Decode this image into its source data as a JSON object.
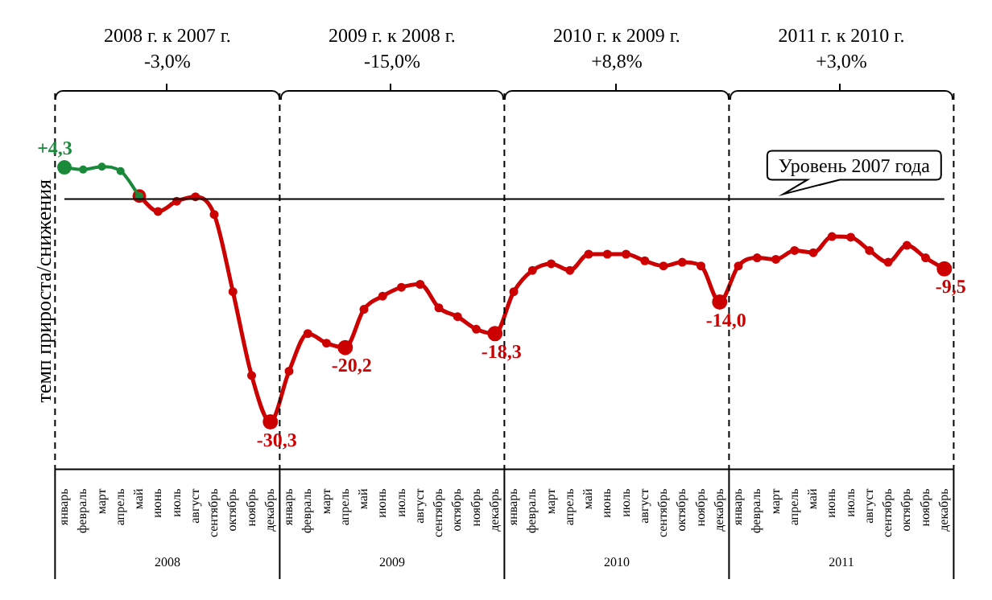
{
  "chart_data": {
    "type": "line",
    "ylabel": "темп прироста/снижения",
    "categories": [
      "январь",
      "февраль",
      "март",
      "апрель",
      "май",
      "июнь",
      "июль",
      "август",
      "сентябрь",
      "октябрь",
      "ноябрь",
      "декабрь",
      "январь",
      "февраль",
      "март",
      "апрель",
      "май",
      "июнь",
      "июль",
      "август",
      "сентябрь",
      "октябрь",
      "ноябрь",
      "декабрь",
      "январь",
      "февраль",
      "март",
      "апрель",
      "май",
      "июнь",
      "июль",
      "август",
      "сентябрь",
      "октябрь",
      "ноябрь",
      "декабрь",
      "январь",
      "февраль",
      "март",
      "апрель",
      "май",
      "июнь",
      "июль",
      "август",
      "сентябрь",
      "октябрь",
      "ноябрь",
      "декабрь"
    ],
    "series": [
      {
        "color": "#1a8a3a",
        "values": [
          4.3,
          4.0,
          4.4,
          3.8,
          0.4,
          null,
          null,
          null,
          null,
          null,
          null,
          null,
          null,
          null,
          null,
          null,
          null,
          null,
          null,
          null,
          null,
          null,
          null,
          null,
          null,
          null,
          null,
          null,
          null,
          null,
          null,
          null,
          null,
          null,
          null,
          null,
          null,
          null,
          null,
          null,
          null,
          null,
          null,
          null,
          null,
          null,
          null,
          null
        ],
        "value_labels": [
          "+4,3",
          null,
          null,
          null,
          null,
          null,
          null,
          null,
          null,
          null,
          null,
          null,
          null,
          null,
          null,
          null,
          null,
          null,
          null,
          null,
          null,
          null,
          null,
          null,
          null,
          null,
          null,
          null,
          null,
          null,
          null,
          null,
          null,
          null,
          null,
          null,
          null,
          null,
          null,
          null,
          null,
          null,
          null,
          null,
          null,
          null,
          null,
          null
        ]
      },
      {
        "color": "#cc0000",
        "values": [
          null,
          null,
          null,
          null,
          0.4,
          -1.7,
          -0.3,
          0.3,
          -2.1,
          -12.6,
          -24.0,
          -30.3,
          -23.4,
          -18.3,
          -19.6,
          -20.2,
          -15.0,
          -13.2,
          -12.0,
          -11.6,
          -14.8,
          -16.0,
          -17.7,
          -18.3,
          -12.6,
          -9.7,
          -8.8,
          -9.7,
          -7.5,
          -7.5,
          -7.5,
          -8.4,
          -9.1,
          -8.6,
          -9.1,
          -14.0,
          -9.1,
          -8.0,
          -8.2,
          -7.0,
          -7.3,
          -5.1,
          -5.2,
          -7.0,
          -8.6,
          -6.3,
          -8.0,
          -9.5
        ],
        "value_labels": [
          null,
          null,
          null,
          null,
          null,
          null,
          null,
          null,
          null,
          null,
          null,
          "-30,3",
          null,
          null,
          null,
          "-20,2",
          null,
          null,
          null,
          null,
          null,
          null,
          null,
          "-18,3",
          null,
          null,
          null,
          null,
          null,
          null,
          null,
          null,
          null,
          null,
          null,
          "-14,0",
          null,
          null,
          null,
          null,
          null,
          null,
          null,
          null,
          null,
          null,
          null,
          "-9,5"
        ]
      }
    ],
    "tick_labels": "x",
    "grid": false,
    "legend": false,
    "marker": "circle",
    "line_style": "solid",
    "ref_lines": [
      {
        "axis": "y",
        "value": 0,
        "label": "Уровень 2007 года",
        "color": "#000000"
      }
    ],
    "annotations": [
      "2008 г. к 2007 г.\n-3,0%",
      "2009 г. к 2008 г.\n-15,0%",
      "2010 г. к 2009 г.\n+8,8%",
      "2011 г. к 2010 г.\n+3,0%",
      "2008",
      "2009",
      "2010",
      "2011"
    ]
  }
}
